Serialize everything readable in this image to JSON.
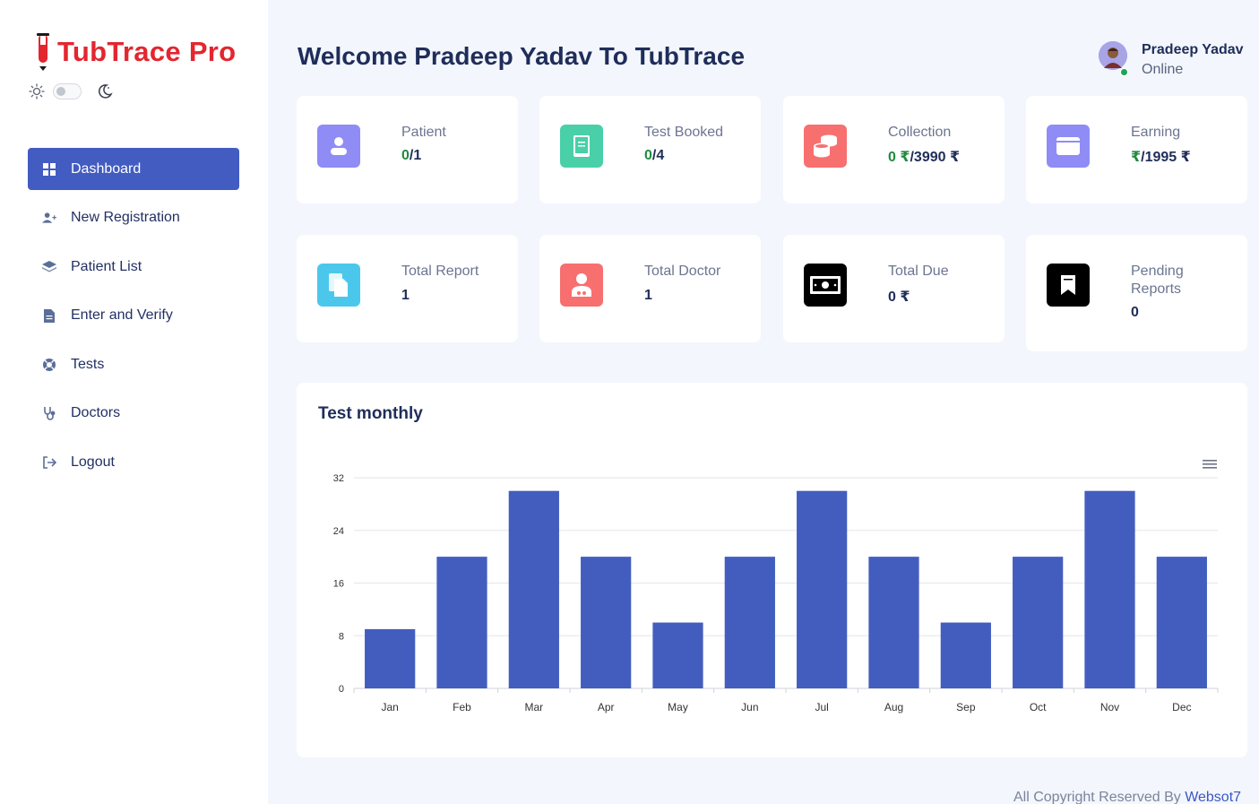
{
  "brand": {
    "name": "TubTrace Pro"
  },
  "nav": [
    {
      "label": "Dashboard",
      "icon": "grid-icon",
      "active": true
    },
    {
      "label": "New Registration",
      "icon": "user-plus-icon"
    },
    {
      "label": "Patient List",
      "icon": "layers-icon"
    },
    {
      "label": "Enter and Verify",
      "icon": "file-text-icon"
    },
    {
      "label": "Tests",
      "icon": "lifebuoy-icon"
    },
    {
      "label": "Doctors",
      "icon": "stethoscope-icon"
    },
    {
      "label": "Logout",
      "icon": "logout-icon"
    }
  ],
  "header": {
    "welcome": "Welcome Pradeep Yadav To TubTrace",
    "user_name": "Pradeep Yadav",
    "user_status": "Online"
  },
  "stats": [
    {
      "label": "Patient",
      "value_a": "0",
      "value_b": "/1",
      "icon": "user-icon",
      "color": "#8f8cf6"
    },
    {
      "label": "Test Booked",
      "value_a": "0",
      "value_b": "/4",
      "icon": "book-icon",
      "color": "#49d0a8"
    },
    {
      "label": "Collection",
      "value_a": "0 ₹",
      "value_b": "/3990 ₹",
      "icon": "coins-icon",
      "color": "#f86f6f"
    },
    {
      "label": "Earning",
      "value_a": "₹",
      "value_b": "/1995 ₹",
      "icon": "wallet-icon",
      "color": "#8f8cf6"
    },
    {
      "label": "Total Report",
      "value": "1",
      "icon": "copy-icon",
      "color": "#4cc7ec"
    },
    {
      "label": "Total Doctor",
      "value": "1",
      "icon": "doctor-icon",
      "color": "#f86f6f"
    },
    {
      "label": "Total Due",
      "value": "0 ₹",
      "icon": "money-bill-icon",
      "color": "#000000"
    },
    {
      "label": "Pending Reports",
      "value": "0",
      "icon": "bookmark-icon",
      "color": "#000000"
    }
  ],
  "chart_data": {
    "type": "bar",
    "title": "Test monthly",
    "categories": [
      "Jan",
      "Feb",
      "Mar",
      "Apr",
      "May",
      "Jun",
      "Jul",
      "Aug",
      "Sep",
      "Oct",
      "Nov",
      "Dec"
    ],
    "values": [
      9,
      20,
      30,
      20,
      10,
      20,
      30,
      20,
      10,
      20,
      30,
      20
    ],
    "yticks": [
      0,
      8,
      16,
      24,
      32
    ],
    "ylim": [
      0,
      32
    ],
    "color": "#435dbf",
    "grid": true
  },
  "footer": {
    "text": "All Copyright Reserved By ",
    "link": "Websot7"
  }
}
